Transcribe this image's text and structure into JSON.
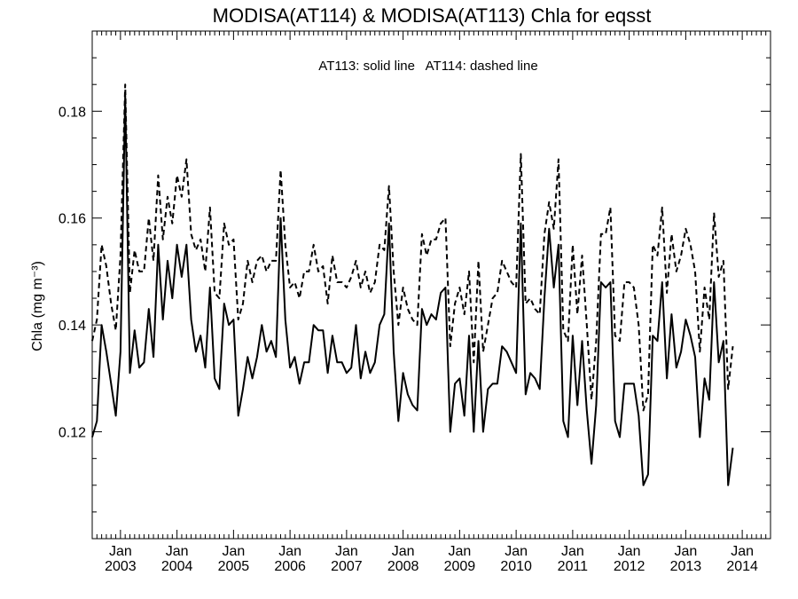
{
  "chart_data": {
    "type": "line",
    "title": "MODISA(AT114) & MODISA(AT113)  Chla for eqsst",
    "ylabel": "Chla (mg m⁻³)",
    "annotation": "AT113: solid line   AT114: dashed line",
    "ylim": [
      0.1,
      0.195
    ],
    "y_ticks": [
      0.12,
      0.14,
      0.16,
      0.18
    ],
    "y_tick_labels": [
      "0.12",
      "0.14",
      "0.16",
      "0.18"
    ],
    "xlim": [
      "2002-07",
      "2014-07"
    ],
    "x_tick_top": [
      "Jan",
      "Jan",
      "Jan",
      "Jan",
      "Jan",
      "Jan",
      "Jan",
      "Jan",
      "Jan",
      "Jan",
      "Jan",
      "Jan"
    ],
    "x_tick_bottom": [
      "2003",
      "2004",
      "2005",
      "2006",
      "2007",
      "2008",
      "2009",
      "2010",
      "2011",
      "2012",
      "2013",
      "2014"
    ],
    "start": "2002-07",
    "series": [
      {
        "name": "AT113",
        "style": "solid",
        "values": [
          0.119,
          0.122,
          0.14,
          0.135,
          0.129,
          0.123,
          0.135,
          0.183,
          0.131,
          0.139,
          0.132,
          0.133,
          0.143,
          0.134,
          0.155,
          0.141,
          0.152,
          0.145,
          0.155,
          0.149,
          0.155,
          0.141,
          0.135,
          0.138,
          0.132,
          0.147,
          0.13,
          0.128,
          0.144,
          0.14,
          0.141,
          0.123,
          0.128,
          0.134,
          0.13,
          0.134,
          0.14,
          0.135,
          0.137,
          0.134,
          0.16,
          0.141,
          0.132,
          0.134,
          0.129,
          0.133,
          0.133,
          0.14,
          0.139,
          0.139,
          0.131,
          0.138,
          0.133,
          0.133,
          0.131,
          0.132,
          0.14,
          0.13,
          0.135,
          0.131,
          0.133,
          0.14,
          0.142,
          0.159,
          0.135,
          0.122,
          0.131,
          0.127,
          0.125,
          0.124,
          0.143,
          0.14,
          0.142,
          0.141,
          0.146,
          0.147,
          0.12,
          0.129,
          0.13,
          0.123,
          0.138,
          0.12,
          0.137,
          0.12,
          0.128,
          0.129,
          0.129,
          0.136,
          0.135,
          0.133,
          0.131,
          0.159,
          0.127,
          0.131,
          0.13,
          0.128,
          0.145,
          0.158,
          0.147,
          0.155,
          0.122,
          0.119,
          0.138,
          0.125,
          0.137,
          0.124,
          0.114,
          0.125,
          0.148,
          0.147,
          0.148,
          0.122,
          0.119,
          0.129,
          0.129,
          0.129,
          0.123,
          0.11,
          0.112,
          0.138,
          0.137,
          0.148,
          0.13,
          0.142,
          0.132,
          0.135,
          0.141,
          0.138,
          0.134,
          0.119,
          0.13,
          0.126,
          0.148,
          0.133,
          0.137,
          0.11,
          0.117
        ]
      },
      {
        "name": "AT114",
        "style": "dashed",
        "values": [
          0.137,
          0.141,
          0.155,
          0.151,
          0.144,
          0.139,
          0.153,
          0.185,
          0.146,
          0.154,
          0.15,
          0.15,
          0.16,
          0.152,
          0.168,
          0.156,
          0.164,
          0.159,
          0.168,
          0.164,
          0.171,
          0.157,
          0.154,
          0.156,
          0.15,
          0.162,
          0.146,
          0.145,
          0.159,
          0.155,
          0.156,
          0.141,
          0.144,
          0.152,
          0.148,
          0.152,
          0.153,
          0.15,
          0.152,
          0.152,
          0.169,
          0.155,
          0.147,
          0.148,
          0.145,
          0.15,
          0.15,
          0.155,
          0.15,
          0.151,
          0.144,
          0.153,
          0.148,
          0.148,
          0.147,
          0.149,
          0.152,
          0.147,
          0.15,
          0.146,
          0.148,
          0.155,
          0.154,
          0.166,
          0.15,
          0.14,
          0.147,
          0.143,
          0.141,
          0.14,
          0.157,
          0.153,
          0.156,
          0.156,
          0.159,
          0.16,
          0.136,
          0.144,
          0.147,
          0.142,
          0.15,
          0.133,
          0.152,
          0.135,
          0.14,
          0.145,
          0.146,
          0.152,
          0.15,
          0.148,
          0.147,
          0.172,
          0.144,
          0.145,
          0.143,
          0.142,
          0.157,
          0.163,
          0.158,
          0.171,
          0.139,
          0.137,
          0.155,
          0.142,
          0.153,
          0.14,
          0.126,
          0.137,
          0.157,
          0.157,
          0.162,
          0.138,
          0.137,
          0.148,
          0.148,
          0.147,
          0.14,
          0.124,
          0.127,
          0.155,
          0.153,
          0.162,
          0.146,
          0.157,
          0.15,
          0.153,
          0.158,
          0.155,
          0.15,
          0.135,
          0.147,
          0.141,
          0.161,
          0.149,
          0.152,
          0.128,
          0.136
        ]
      }
    ]
  }
}
